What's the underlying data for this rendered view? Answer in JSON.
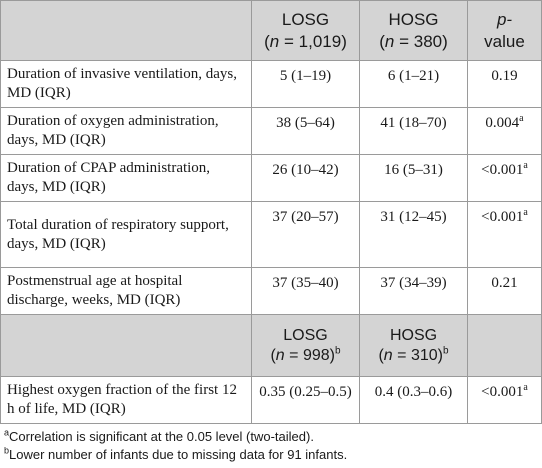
{
  "header": {
    "group1_name": "LOSG",
    "group1_n_label": "n",
    "group1_n_value": " = 1,019",
    "group2_name": "HOSG",
    "group2_n_label": "n",
    "group2_n_value": " = 380",
    "pvalue_label": "p-",
    "pvalue_label2": "value"
  },
  "rows": [
    {
      "label": "Duration of invasive ventilation, days, MD (IQR)",
      "g1": "5 (1–19)",
      "g2": "6 (1–21)",
      "p": "0.19",
      "p_sup": ""
    },
    {
      "label": "Duration of oxygen administration, days, MD (IQR)",
      "g1": "38 (5–64)",
      "g2": "41 (18–70)",
      "p": "0.004",
      "p_sup": "a"
    },
    {
      "label": "Duration of CPAP administration, days, MD (IQR)",
      "g1": "26 (10–42)",
      "g2": "16 (5–31)",
      "p": "<0.001",
      "p_sup": "a"
    },
    {
      "label_line1": "Total duration of respiratory support,",
      "label_line2": "days, MD (IQR)",
      "g1": "37 (20–57)",
      "g2": "31 (12–45)",
      "p": "<0.001",
      "p_sup": "a"
    },
    {
      "label": "Postmenstrual age at hospital discharge, weeks, MD (IQR)",
      "g1": "37 (35–40)",
      "g2": "37 (34–39)",
      "p": "0.21",
      "p_sup": ""
    }
  ],
  "subheader": {
    "group1_name": "LOSG",
    "group1_n_label": "n",
    "group1_n_value": " = 998)",
    "group1_sup": "b",
    "group2_name": "HOSG",
    "group2_n_label": "n",
    "group2_n_value": " = 310)",
    "group2_sup": "b"
  },
  "last_row": {
    "label": "Highest oxygen fraction of the first 12 h of life, MD (IQR)",
    "g1": "0.35 (0.25–0.5)",
    "g2": "0.4 (0.3–0.6)",
    "p": "<0.001",
    "p_sup": "a"
  },
  "footnotes": {
    "a_mark": "a",
    "a_text": "Correlation is significant at the 0.05 level (two-tailed).",
    "b_mark": "b",
    "b_text": "Lower number of infants due to missing data for 91 infants."
  }
}
